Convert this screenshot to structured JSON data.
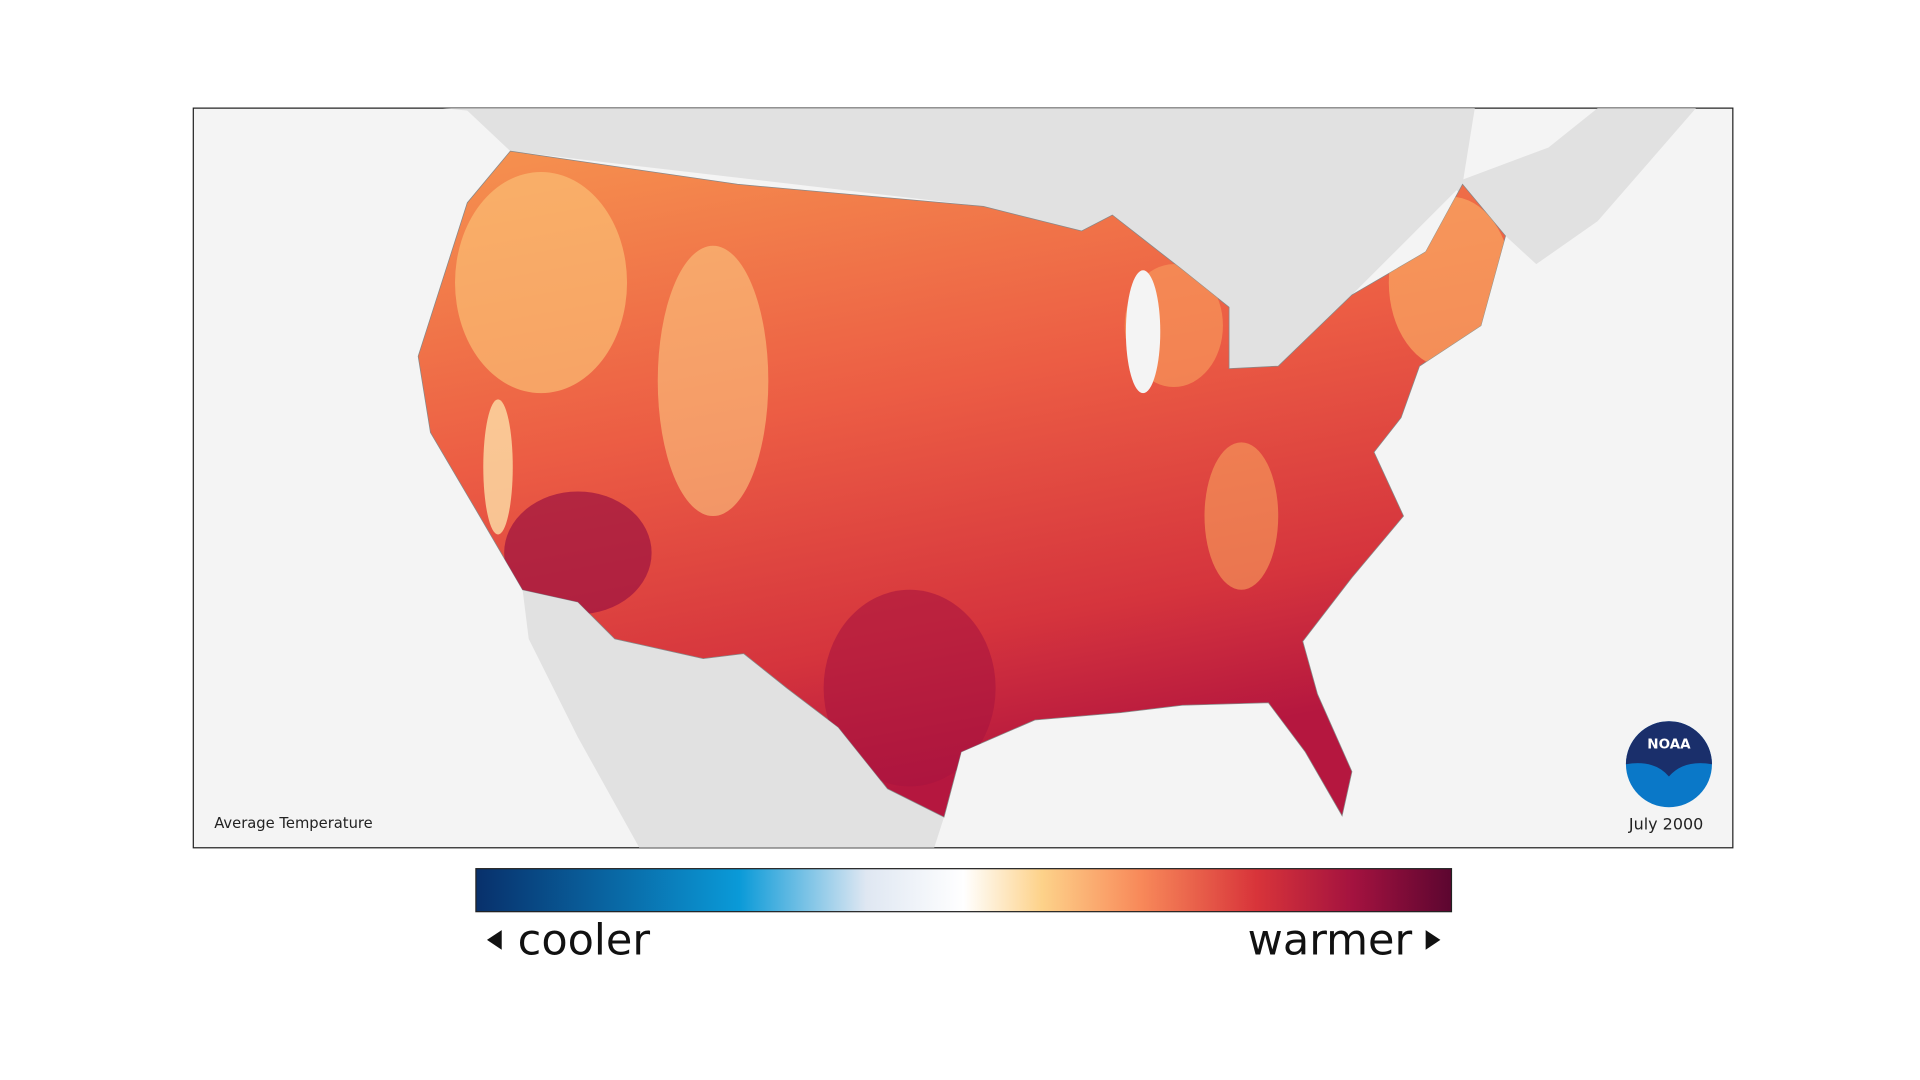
{
  "map": {
    "title": "Average Temperature",
    "date": "July 2000"
  },
  "legend": {
    "low_label": "cooler",
    "high_label": "warmer"
  },
  "logo": {
    "text": "NOAA"
  }
}
